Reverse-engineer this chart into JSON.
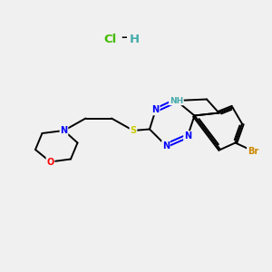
{
  "background_color": "#f0f0f0",
  "bond_color": "#000000",
  "atom_colors": {
    "N": "#0000ff",
    "S": "#cccc00",
    "O": "#ff0000",
    "Br": "#cc8800",
    "NH": "#44aaaa",
    "Cl": "#44bb00",
    "H_salt": "#44aaaa"
  },
  "figsize": [
    3.0,
    3.0
  ],
  "dpi": 100
}
